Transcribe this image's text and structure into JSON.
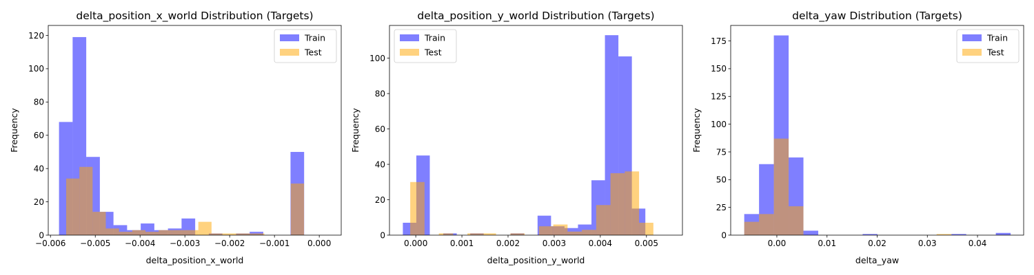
{
  "chart_data": [
    {
      "type": "histogram",
      "title": "delta_position_x_world Distribution (Targets)",
      "xlabel": "delta_position_x_world",
      "ylabel": "Frequency",
      "xlim": [
        -0.00605,
        0.00049
      ],
      "ylim": [
        0,
        126
      ],
      "xticks": [
        -0.006,
        -0.005,
        -0.004,
        -0.003,
        -0.002,
        -0.001,
        0.0
      ],
      "xtick_labels": [
        "−0.006",
        "−0.005",
        "−0.004",
        "−0.003",
        "−0.002",
        "−0.001",
        "0.000"
      ],
      "yticks": [
        0,
        20,
        40,
        60,
        80,
        100,
        120
      ],
      "ytick_labels": [
        "0",
        "20",
        "40",
        "60",
        "80",
        "100",
        "120"
      ],
      "legend": {
        "position": "top-right",
        "entries": [
          "Train",
          "Test"
        ]
      },
      "series": [
        {
          "name": "Train",
          "color": "#0000ff",
          "alpha": 0.5,
          "bin_start": -0.00581,
          "bin_width": 0.000304,
          "values": [
            68,
            119,
            47,
            14,
            6,
            3,
            7,
            3,
            4,
            10,
            0,
            1,
            0,
            1,
            2,
            0,
            0,
            50
          ]
        },
        {
          "name": "Test",
          "color": "#ffa500",
          "alpha": 0.5,
          "bin_start": -0.00565,
          "bin_width": 0.000295,
          "values": [
            34,
            41,
            14,
            4,
            2,
            3,
            2,
            3,
            3,
            3,
            8,
            1,
            1,
            1,
            1,
            0,
            0,
            31
          ]
        }
      ]
    },
    {
      "type": "histogram",
      "title": "delta_position_y_world Distribution (Targets)",
      "xlabel": "delta_position_y_world",
      "ylabel": "Frequency",
      "xlim": [
        -0.00057,
        0.00578
      ],
      "ylim": [
        0,
        118.5
      ],
      "xticks": [
        0.0,
        0.001,
        0.002,
        0.003,
        0.004,
        0.005
      ],
      "xtick_labels": [
        "0.000",
        "0.001",
        "0.002",
        "0.003",
        "0.004",
        "0.005"
      ],
      "yticks": [
        0,
        20,
        40,
        60,
        80,
        100
      ],
      "ytick_labels": [
        "0",
        "20",
        "40",
        "60",
        "80",
        "100"
      ],
      "legend": {
        "position": "top-left",
        "entries": [
          "Train",
          "Test"
        ]
      },
      "series": [
        {
          "name": "Train",
          "color": "#0000ff",
          "alpha": 0.5,
          "bin_start": -0.00028,
          "bin_width": 0.000292,
          "values": [
            7,
            45,
            0,
            1,
            0,
            1,
            0,
            0,
            1,
            0,
            11,
            5,
            4,
            6,
            31,
            113,
            101,
            15
          ]
        },
        {
          "name": "Test",
          "color": "#ffa500",
          "alpha": 0.5,
          "bin_start": -0.00012,
          "bin_width": 0.00031,
          "values": [
            30,
            0,
            1,
            0,
            1,
            1,
            0,
            1,
            0,
            5,
            6,
            2,
            3,
            17,
            35,
            36,
            7
          ]
        }
      ]
    },
    {
      "type": "histogram",
      "title": "delta_yaw Distribution (Targets)",
      "xlabel": "delta_yaw",
      "ylabel": "Frequency",
      "xlim": [
        -0.0092,
        0.0492
      ],
      "ylim": [
        0,
        189
      ],
      "xticks": [
        0.0,
        0.01,
        0.02,
        0.03,
        0.04
      ],
      "xtick_labels": [
        "0.00",
        "0.01",
        "0.02",
        "0.03",
        "0.04"
      ],
      "yticks": [
        0,
        25,
        50,
        75,
        100,
        125,
        150,
        175
      ],
      "ytick_labels": [
        "0",
        "25",
        "50",
        "75",
        "100",
        "125",
        "150",
        "175"
      ],
      "legend": {
        "position": "top-right",
        "entries": [
          "Train",
          "Test"
        ]
      },
      "series": [
        {
          "name": "Train",
          "color": "#0000ff",
          "alpha": 0.5,
          "bin_start": -0.0065,
          "bin_width": 0.00295,
          "values": [
            19,
            64,
            180,
            70,
            4,
            0,
            0,
            0,
            1,
            0,
            0,
            0,
            0,
            0,
            1,
            0,
            0,
            2
          ]
        },
        {
          "name": "Test",
          "color": "#ffa500",
          "alpha": 0.5,
          "bin_start": -0.0065,
          "bin_width": 0.00295,
          "values": [
            12,
            19,
            87,
            26,
            0,
            0,
            0,
            0,
            0,
            0,
            0,
            0,
            0,
            1,
            0,
            0,
            0,
            0
          ]
        }
      ]
    }
  ]
}
